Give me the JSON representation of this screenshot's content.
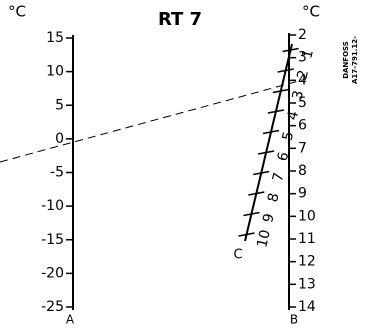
{
  "title": "RT 7",
  "scale_a": {
    "unit": "°C",
    "name": "A",
    "ticks": [
      15,
      10,
      5,
      0,
      -5,
      -10,
      -15,
      -20,
      -25
    ]
  },
  "scale_b": {
    "unit": "°C",
    "name": "B",
    "ticks": [
      2,
      3,
      4,
      5,
      6,
      7,
      8,
      9,
      10,
      11,
      12,
      13,
      14
    ]
  },
  "scale_c": {
    "name": "C",
    "ticks": [
      1,
      2,
      3,
      4,
      5,
      6,
      7,
      8,
      9,
      10
    ]
  },
  "code": [
    "DANFOSS",
    "A17-791.12-"
  ]
}
